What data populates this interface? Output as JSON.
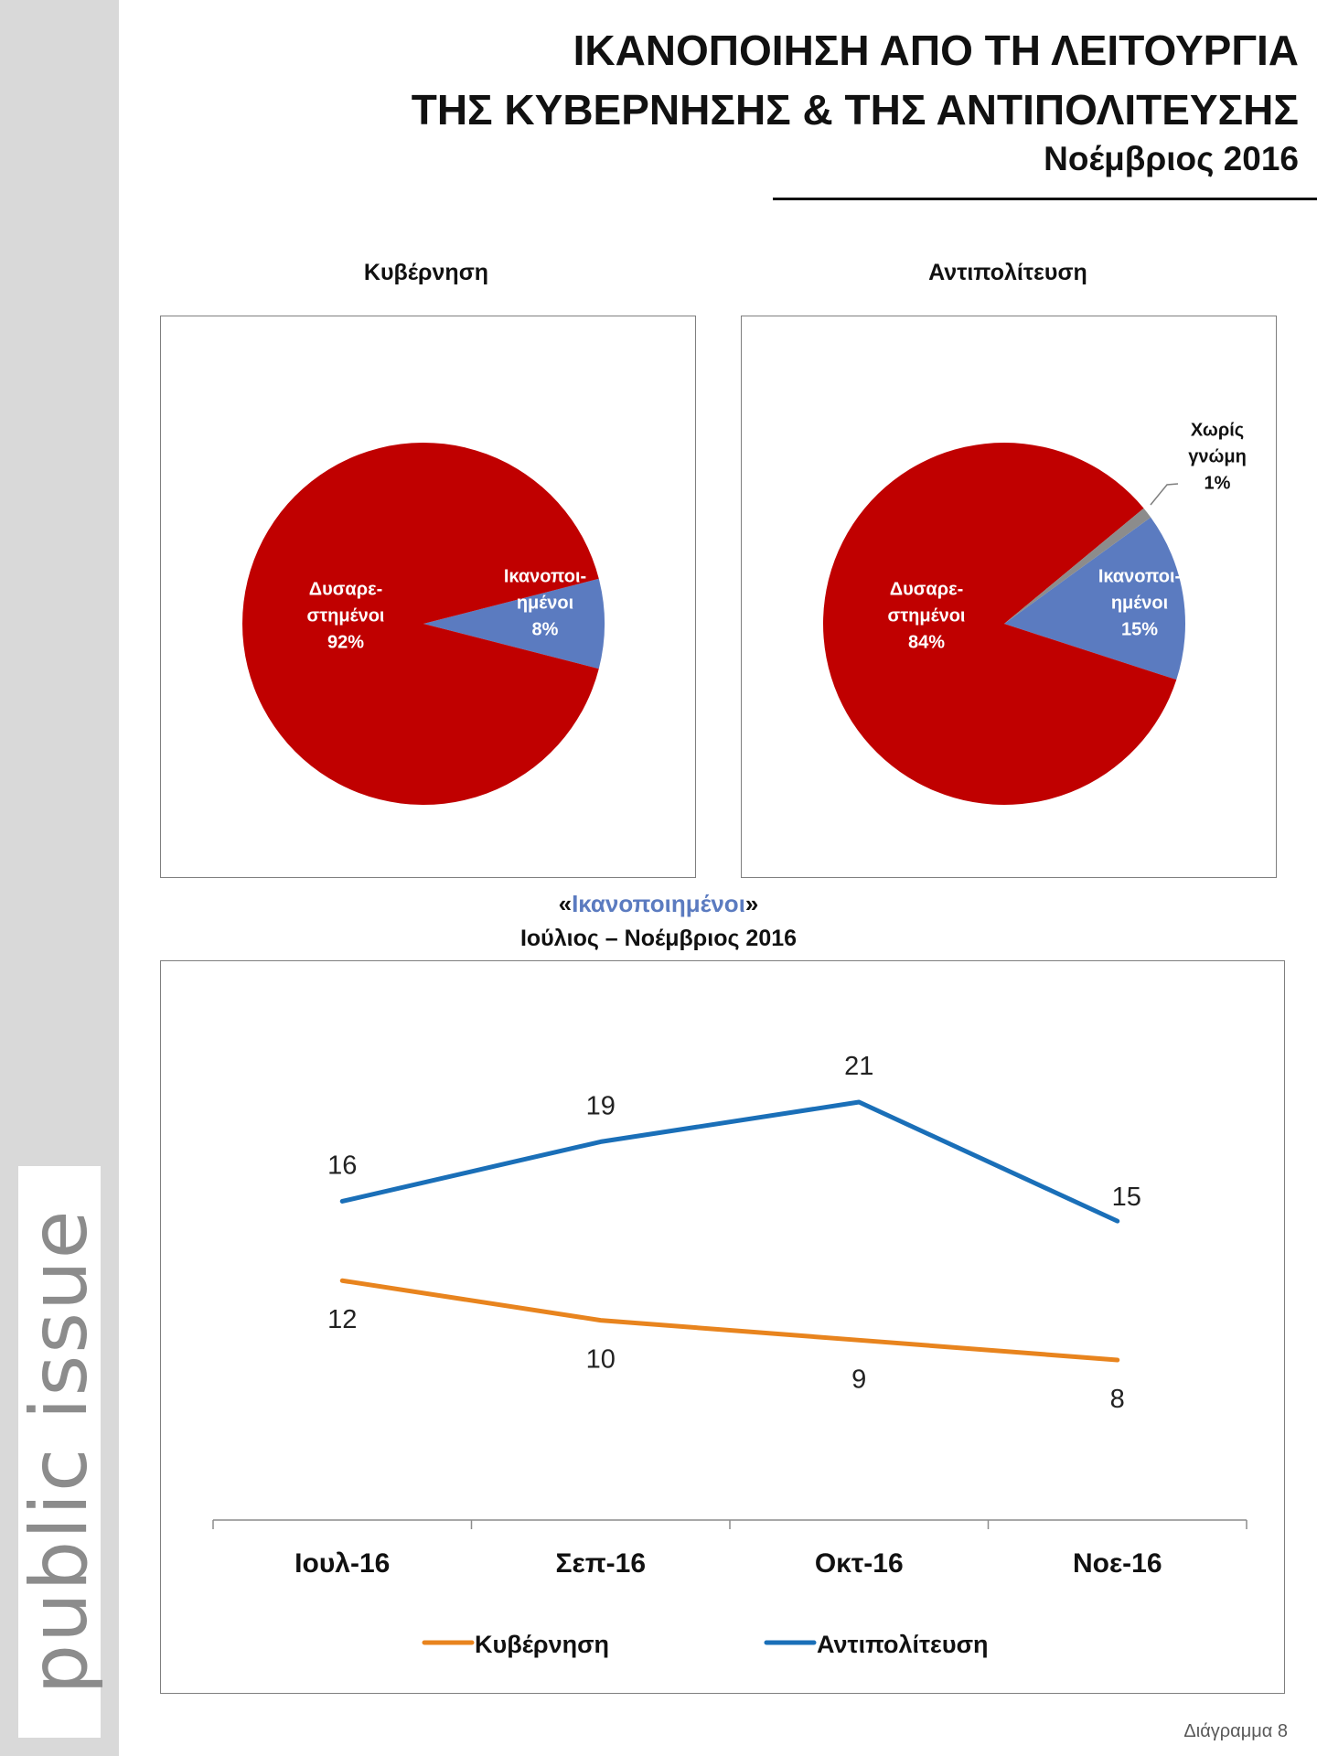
{
  "brand": "public issue",
  "header": {
    "title_line1": "ΙΚΑΝΟΠΟΙΗΣΗ ΑΠΟ ΤΗ ΛΕΙΤΟΥΡΓΙΑ",
    "title_line2": "ΤΗΣ ΚΥΒΕΡΝΗΣΗΣ & ΤΗΣ ΑΝΤΙΠΟΛΙΤΕΥΣΗΣ",
    "subtitle": "Νοέμβριος 2016"
  },
  "line_section": {
    "quote_open": "«",
    "highlight": "Ικανοποιημένοι",
    "quote_close": "»",
    "subheading": "Ιούλιος – Νοέμβριος 2016"
  },
  "footer": "Διάγραμμα 8",
  "colors": {
    "red": "#c00000",
    "blue_slice": "#5b7bc0",
    "gray_slice": "#8c8c8c",
    "orange_line": "#e8841e",
    "blue_line": "#1a6fb8"
  },
  "chart_data": [
    {
      "type": "pie",
      "title": "Κυβέρνηση",
      "slices": [
        {
          "label_lines": [
            "Ικανοποι-",
            "ημένοι"
          ],
          "value": 8,
          "value_label": "8%",
          "color": "#5b7bc0"
        },
        {
          "label_lines": [
            "Δυσαρε-",
            "στημένοι"
          ],
          "value": 92,
          "value_label": "92%",
          "color": "#c00000"
        }
      ]
    },
    {
      "type": "pie",
      "title": "Αντιπολίτευση",
      "slices": [
        {
          "label_lines": [
            "Ικανοποι-",
            "ημένοι"
          ],
          "value": 15,
          "value_label": "15%",
          "color": "#5b7bc0"
        },
        {
          "label_lines": [
            "Δυσαρε-",
            "στημένοι"
          ],
          "value": 84,
          "value_label": "84%",
          "color": "#c00000"
        },
        {
          "label_lines": [
            "Χωρίς",
            "γνώμη"
          ],
          "value": 1,
          "value_label": "1%",
          "color": "#8c8c8c"
        }
      ]
    },
    {
      "type": "line",
      "categories": [
        "Ιουλ-16",
        "Σεπ-16",
        "Οκτ-16",
        "Νοε-16"
      ],
      "series": [
        {
          "name": "Κυβέρνηση",
          "values": [
            12,
            10,
            9,
            8
          ],
          "color": "#e8841e"
        },
        {
          "name": "Αντιπολίτευση",
          "values": [
            16,
            19,
            21,
            15
          ],
          "color": "#1a6fb8"
        }
      ],
      "grid": false,
      "legend": "bottom"
    }
  ]
}
